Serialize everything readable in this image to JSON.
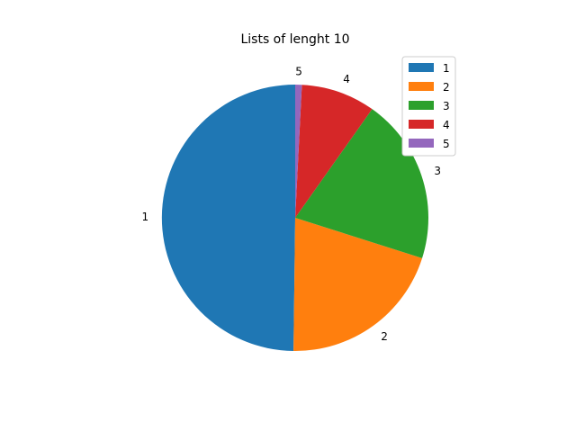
{
  "chart_data": {
    "type": "pie",
    "title": "Lists of lenght 10",
    "categories": [
      "1",
      "2",
      "3",
      "4",
      "5"
    ],
    "values": [
      49.8,
      20.3,
      20.1,
      9.0,
      0.8
    ],
    "colors": [
      "#1f77b4",
      "#ff7f0e",
      "#2ca02c",
      "#d62728",
      "#9467bd"
    ],
    "start_angle_deg": 90,
    "direction": "counterclockwise",
    "legend": {
      "placement": "top-right",
      "entries": [
        "1",
        "2",
        "3",
        "4",
        "5"
      ]
    }
  }
}
